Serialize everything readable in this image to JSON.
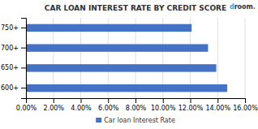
{
  "chart_data": {
    "type": "bar",
    "orientation": "horizontal",
    "title": "CAR LOAN INTEREST RATE BY CREDIT SCORE",
    "categories": [
      "600+",
      "650+",
      "700+",
      "750+"
    ],
    "series": [
      {
        "name": "Car loan Interest Rate",
        "color": "#4472C4",
        "values": [
          14.7,
          13.9,
          13.3,
          12.1
        ]
      }
    ],
    "xlim": [
      0,
      16
    ],
    "xticks": [
      {
        "value": 0,
        "label": "0.00%"
      },
      {
        "value": 2,
        "label": "2.00%"
      },
      {
        "value": 4,
        "label": "4.00%"
      },
      {
        "value": 6,
        "label": "6.00%"
      },
      {
        "value": 8,
        "label": "8.00%"
      },
      {
        "value": 10,
        "label": "10.00%"
      },
      {
        "value": 12,
        "label": "12.00%"
      },
      {
        "value": 14,
        "label": "14.00%"
      },
      {
        "value": 16,
        "label": "16.00%"
      }
    ],
    "grid": true,
    "legend": "bottom",
    "annotations": [
      {
        "text": "d",
        "color": "#3b9ed9"
      },
      {
        "text": "room",
        "color": "#333333"
      },
      {
        "text": ".",
        "color": "#e8312a"
      }
    ]
  }
}
